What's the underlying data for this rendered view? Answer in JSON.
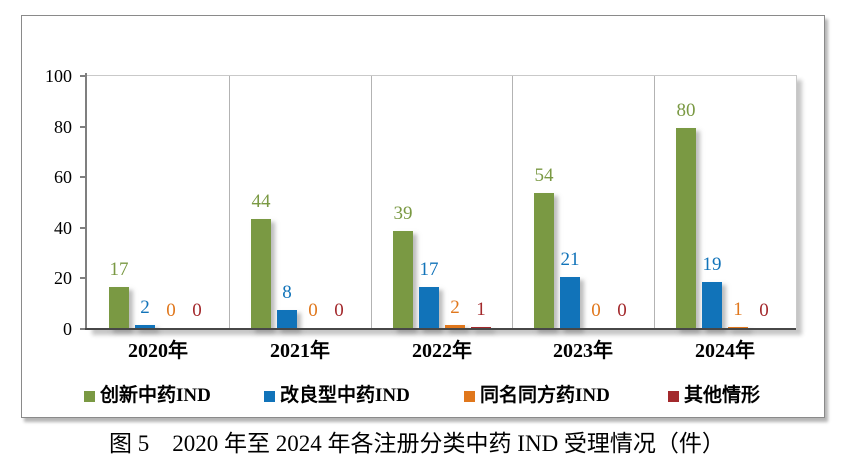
{
  "chart_data": {
    "type": "bar",
    "categories": [
      "2020年",
      "2021年",
      "2022年",
      "2023年",
      "2024年"
    ],
    "series": [
      {
        "name": "创新中药IND",
        "color": "#7A9943",
        "values": [
          17,
          44,
          39,
          54,
          80
        ]
      },
      {
        "name": "改良型中药IND",
        "color": "#1173B9",
        "values": [
          2,
          8,
          17,
          21,
          19
        ]
      },
      {
        "name": "同名同方药IND",
        "color": "#E0771C",
        "values": [
          0,
          0,
          2,
          0,
          1
        ]
      },
      {
        "name": "其他情形",
        "color": "#A3292C",
        "values": [
          0,
          0,
          1,
          0,
          0
        ]
      }
    ],
    "ylim": [
      0,
      100
    ],
    "yticks": [
      0,
      20,
      40,
      60,
      80,
      100
    ],
    "grid": "vertical-category-separators",
    "legend_position": "bottom",
    "data_labels": "above-bars, colored per series"
  },
  "caption": "图 5　2020 年至 2024 年各注册分类中药 IND 受理情况（件）"
}
